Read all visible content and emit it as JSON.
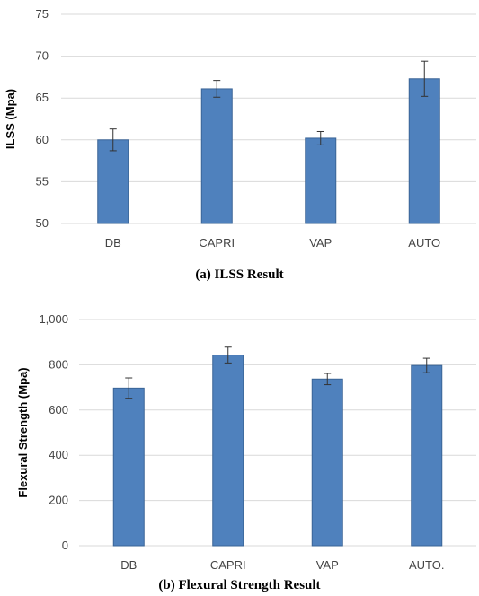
{
  "charts": [
    {
      "caption": "(a) ILSS Result",
      "chart_data": {
        "type": "bar",
        "categories": [
          "DB",
          "CAPRI",
          "VAP",
          "AUTO"
        ],
        "values": [
          60.0,
          66.1,
          60.2,
          67.3
        ],
        "errors": [
          1.3,
          1.0,
          0.8,
          2.1
        ],
        "ylabel": "ILSS (Mpa)",
        "xlabel": "",
        "ylim": [
          50,
          75
        ],
        "yticks": [
          50,
          55,
          60,
          65,
          70,
          75
        ],
        "ytick_labels": [
          "50",
          "55",
          "60",
          "65",
          "70",
          "75"
        ],
        "grid": true,
        "bar_color": "#4F81BD"
      }
    },
    {
      "caption": "(b) Flexural Strength Result",
      "chart_data": {
        "type": "bar",
        "categories": [
          "DB",
          "CAPRI",
          "VAP",
          "AUTO."
        ],
        "values": [
          697,
          843,
          737,
          797
        ],
        "errors": [
          45,
          35,
          25,
          32
        ],
        "ylabel": "Flexural Strength (Mpa)",
        "xlabel": "",
        "ylim": [
          0,
          1000
        ],
        "yticks": [
          0,
          200,
          400,
          600,
          800,
          1000
        ],
        "ytick_labels": [
          "0",
          "200",
          "400",
          "600",
          "800",
          "1,000"
        ],
        "grid": true,
        "bar_color": "#4F81BD"
      }
    }
  ]
}
